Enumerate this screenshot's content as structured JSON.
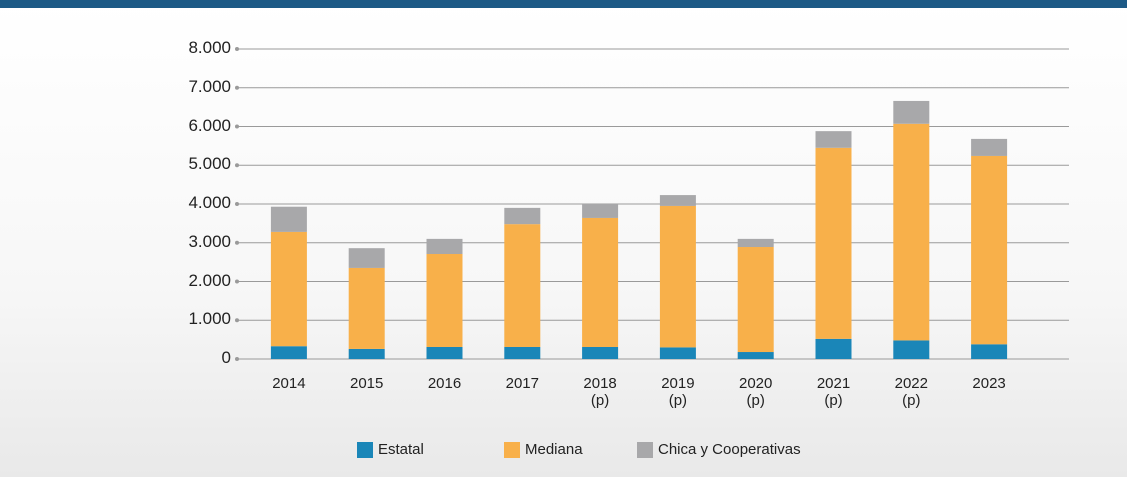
{
  "chart_data": {
    "type": "stacked_bar",
    "categories": [
      "2014",
      "2015",
      "2016",
      "2017",
      "2018 (p)",
      "2019 (p)",
      "2020 (p)",
      "2021 (p)",
      "2022 (p)",
      "2023"
    ],
    "series": [
      {
        "name": "Estatal",
        "color": "#1a86b8",
        "values": [
          330,
          260,
          310,
          310,
          310,
          300,
          180,
          520,
          480,
          380
        ]
      },
      {
        "name": "Mediana",
        "color": "#f8b04a",
        "values": [
          2950,
          2090,
          2400,
          3170,
          3330,
          3650,
          2710,
          4930,
          5590,
          4860
        ]
      },
      {
        "name": "Chica y Cooperativas",
        "color": "#a8a8aa",
        "values": [
          650,
          510,
          390,
          420,
          360,
          280,
          210,
          430,
          590,
          440
        ]
      }
    ],
    "ylim": [
      0,
      8000
    ],
    "yticks": [
      0,
      {
        "value": 1000,
        "label": "1.000"
      },
      {
        "value": 2000,
        "label": "2.000"
      },
      {
        "value": 3000,
        "label": "3.000"
      },
      {
        "value": 4000,
        "label": "4.000"
      },
      {
        "value": 5000,
        "label": "5.000"
      },
      {
        "value": 6000,
        "label": "6.000"
      },
      {
        "value": 7000,
        "label": "7.000"
      },
      {
        "value": 8000,
        "label": "8.000"
      }
    ],
    "grid": true
  }
}
